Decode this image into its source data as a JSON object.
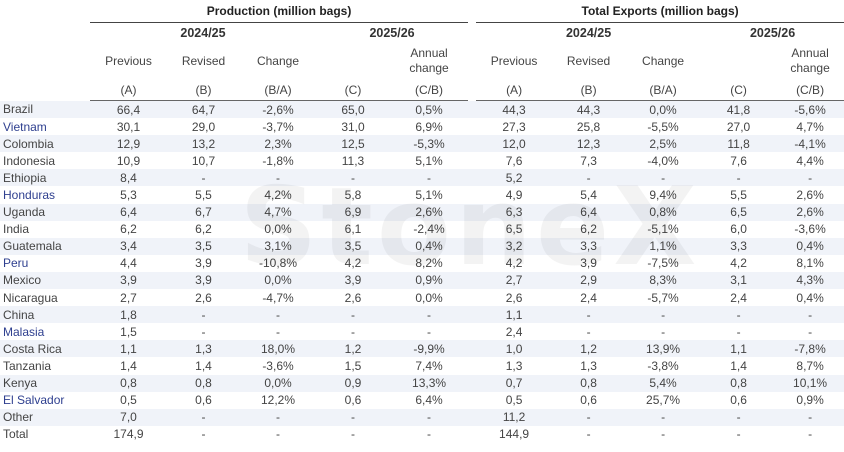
{
  "watermark": "StoneX",
  "groups": {
    "production": "Production  (million bags)",
    "exports": "Total Exports (million bags)"
  },
  "years": {
    "prev": "2024/25",
    "curr": "2025/26"
  },
  "column_labels": {
    "previous": "Previous",
    "revised": "Revised",
    "change": "Change",
    "annual_change_1": "Annual",
    "annual_change_2": "change"
  },
  "column_codes": {
    "a": "(A)",
    "b": "(B)",
    "ba": "(B/A)",
    "c": "(C)",
    "cb": "(C/B)"
  },
  "rows": [
    {
      "country": "Brazil",
      "p_prev": "66,4",
      "p_rev": "64,7",
      "p_chg": "-2,6%",
      "p_new": "65,0",
      "p_ann": "0,5%",
      "e_prev": "44,3",
      "e_rev": "44,3",
      "e_chg": "0,0%",
      "e_new": "41,8",
      "e_ann": "-5,6%"
    },
    {
      "country": "Vietnam",
      "p_prev": "30,1",
      "p_rev": "29,0",
      "p_chg": "-3,7%",
      "p_new": "31,0",
      "p_ann": "6,9%",
      "e_prev": "27,3",
      "e_rev": "25,8",
      "e_chg": "-5,5%",
      "e_new": "27,0",
      "e_ann": "4,7%"
    },
    {
      "country": "Colombia",
      "p_prev": "12,9",
      "p_rev": "13,2",
      "p_chg": "2,3%",
      "p_new": "12,5",
      "p_ann": "-5,3%",
      "e_prev": "12,0",
      "e_rev": "12,3",
      "e_chg": "2,5%",
      "e_new": "11,8",
      "e_ann": "-4,1%"
    },
    {
      "country": "Indonesia",
      "p_prev": "10,9",
      "p_rev": "10,7",
      "p_chg": "-1,8%",
      "p_new": "11,3",
      "p_ann": "5,1%",
      "e_prev": "7,6",
      "e_rev": "7,3",
      "e_chg": "-4,0%",
      "e_new": "7,6",
      "e_ann": "4,4%"
    },
    {
      "country": "Ethiopia",
      "p_prev": "8,4",
      "p_rev": "-",
      "p_chg": "-",
      "p_new": "-",
      "p_ann": "-",
      "e_prev": "5,2",
      "e_rev": "-",
      "e_chg": "-",
      "e_new": "-",
      "e_ann": "-"
    },
    {
      "country": "Honduras",
      "p_prev": "5,3",
      "p_rev": "5,5",
      "p_chg": "4,2%",
      "p_new": "5,8",
      "p_ann": "5,1%",
      "e_prev": "4,9",
      "e_rev": "5,4",
      "e_chg": "9,4%",
      "e_new": "5,5",
      "e_ann": "2,6%"
    },
    {
      "country": "Uganda",
      "p_prev": "6,4",
      "p_rev": "6,7",
      "p_chg": "4,7%",
      "p_new": "6,9",
      "p_ann": "2,6%",
      "e_prev": "6,3",
      "e_rev": "6,4",
      "e_chg": "0,8%",
      "e_new": "6,5",
      "e_ann": "2,6%"
    },
    {
      "country": "India",
      "p_prev": "6,2",
      "p_rev": "6,2",
      "p_chg": "0,0%",
      "p_new": "6,1",
      "p_ann": "-2,4%",
      "e_prev": "6,5",
      "e_rev": "6,2",
      "e_chg": "-5,1%",
      "e_new": "6,0",
      "e_ann": "-3,6%"
    },
    {
      "country": "Guatemala",
      "p_prev": "3,4",
      "p_rev": "3,5",
      "p_chg": "3,1%",
      "p_new": "3,5",
      "p_ann": "0,4%",
      "e_prev": "3,2",
      "e_rev": "3,3",
      "e_chg": "1,1%",
      "e_new": "3,3",
      "e_ann": "0,4%"
    },
    {
      "country": "Peru",
      "p_prev": "4,4",
      "p_rev": "3,9",
      "p_chg": "-10,8%",
      "p_new": "4,2",
      "p_ann": "8,2%",
      "e_prev": "4,2",
      "e_rev": "3,9",
      "e_chg": "-7,5%",
      "e_new": "4,2",
      "e_ann": "8,1%"
    },
    {
      "country": "Mexico",
      "p_prev": "3,9",
      "p_rev": "3,9",
      "p_chg": "0,0%",
      "p_new": "3,9",
      "p_ann": "0,9%",
      "e_prev": "2,7",
      "e_rev": "2,9",
      "e_chg": "8,3%",
      "e_new": "3,1",
      "e_ann": "4,3%"
    },
    {
      "country": "Nicaragua",
      "p_prev": "2,7",
      "p_rev": "2,6",
      "p_chg": "-4,7%",
      "p_new": "2,6",
      "p_ann": "0,0%",
      "e_prev": "2,6",
      "e_rev": "2,4",
      "e_chg": "-5,7%",
      "e_new": "2,4",
      "e_ann": "0,4%"
    },
    {
      "country": "China",
      "p_prev": "1,8",
      "p_rev": "-",
      "p_chg": "-",
      "p_new": "-",
      "p_ann": "-",
      "e_prev": "1,1",
      "e_rev": "-",
      "e_chg": "-",
      "e_new": "-",
      "e_ann": "-"
    },
    {
      "country": "Malasia",
      "p_prev": "1,5",
      "p_rev": "-",
      "p_chg": "-",
      "p_new": "-",
      "p_ann": "-",
      "e_prev": "2,4",
      "e_rev": "-",
      "e_chg": "-",
      "e_new": "-",
      "e_ann": "-"
    },
    {
      "country": "Costa Rica",
      "p_prev": "1,1",
      "p_rev": "1,3",
      "p_chg": "18,0%",
      "p_new": "1,2",
      "p_ann": "-9,9%",
      "e_prev": "1,0",
      "e_rev": "1,2",
      "e_chg": "13,9%",
      "e_new": "1,1",
      "e_ann": "-7,8%"
    },
    {
      "country": "Tanzania",
      "p_prev": "1,4",
      "p_rev": "1,4",
      "p_chg": "-3,6%",
      "p_new": "1,5",
      "p_ann": "7,4%",
      "e_prev": "1,3",
      "e_rev": "1,3",
      "e_chg": "-3,8%",
      "e_new": "1,4",
      "e_ann": "8,7%"
    },
    {
      "country": "Kenya",
      "p_prev": "0,8",
      "p_rev": "0,8",
      "p_chg": "0,0%",
      "p_new": "0,9",
      "p_ann": "13,3%",
      "e_prev": "0,7",
      "e_rev": "0,8",
      "e_chg": "5,4%",
      "e_new": "0,8",
      "e_ann": "10,1%"
    },
    {
      "country": "El Salvador",
      "p_prev": "0,5",
      "p_rev": "0,6",
      "p_chg": "12,2%",
      "p_new": "0,6",
      "p_ann": "6,4%",
      "e_prev": "0,5",
      "e_rev": "0,6",
      "e_chg": "25,7%",
      "e_new": "0,6",
      "e_ann": "0,9%"
    },
    {
      "country": "Other",
      "p_prev": "7,0",
      "p_rev": "-",
      "p_chg": "-",
      "p_new": "-",
      "p_ann": "-",
      "e_prev": "11,2",
      "e_rev": "-",
      "e_chg": "-",
      "e_new": "-",
      "e_ann": "-"
    },
    {
      "country": "Total",
      "p_prev": "174,9",
      "p_rev": "-",
      "p_chg": "-",
      "p_new": "-",
      "p_ann": "-",
      "e_prev": "144,9",
      "e_rev": "-",
      "e_chg": "-",
      "e_new": "-",
      "e_ann": "-"
    }
  ],
  "colors": {
    "negative": "#d42b2b",
    "positive": "#2e9a2e",
    "country_highlight": "#2e3f8f",
    "row_shade": "#f0f3f9"
  },
  "highlighted_countries": [
    "Vietnam",
    "Honduras",
    "Peru",
    "Malasia",
    "El Salvador"
  ]
}
